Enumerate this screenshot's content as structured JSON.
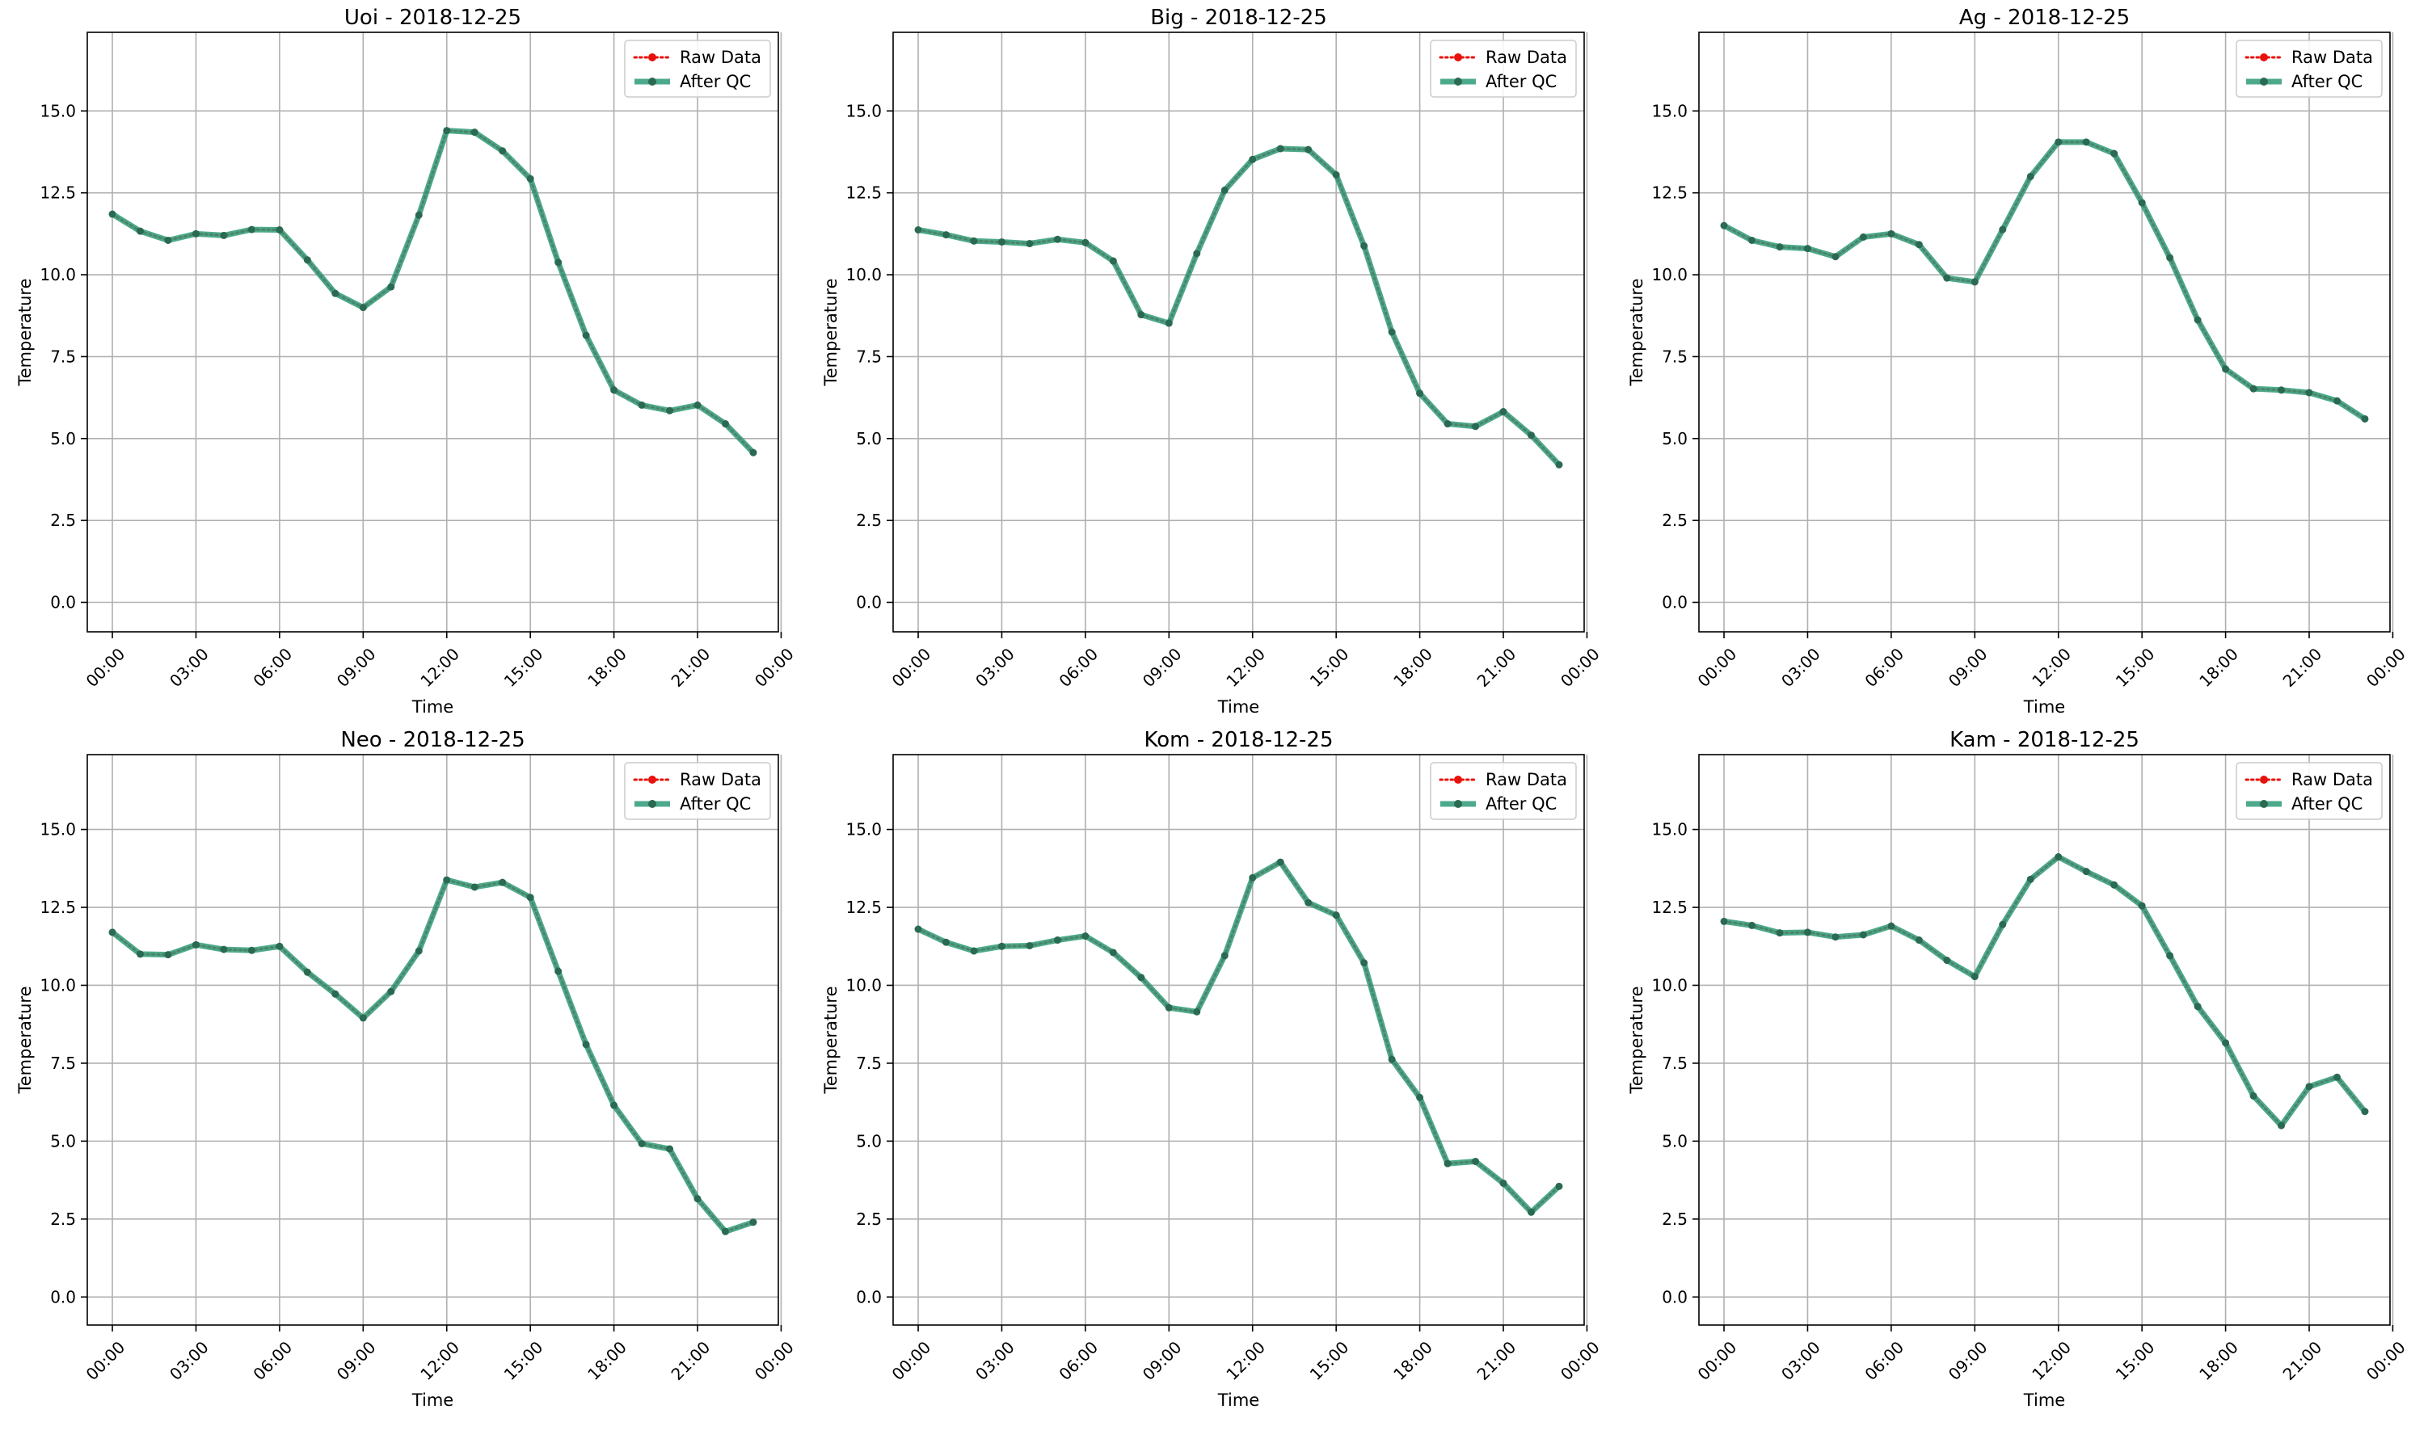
{
  "colors": {
    "raw": "#e8120c",
    "qc": "#2e9a78",
    "qc_marker": "#2b6a52"
  },
  "chart_data": [
    {
      "type": "line",
      "title": "Uoi - 2018-12-25",
      "xlabel": "Time",
      "ylabel": "Temperature",
      "xlim": [
        -0.9,
        23.9
      ],
      "ylim": [
        -0.9,
        17.4
      ],
      "x_ticks": [
        0,
        3,
        6,
        9,
        12,
        15,
        18,
        21,
        24
      ],
      "x_tick_labels": [
        "00:00",
        "03:00",
        "06:00",
        "09:00",
        "12:00",
        "15:00",
        "18:00",
        "21:00",
        "00:00"
      ],
      "y_ticks": [
        0.0,
        2.5,
        5.0,
        7.5,
        10.0,
        12.5,
        15.0
      ],
      "y_tick_labels": [
        "0.0",
        "2.5",
        "5.0",
        "7.5",
        "10.0",
        "12.5",
        "15.0"
      ],
      "grid": true,
      "legend": "upper-right",
      "x": [
        0,
        1,
        2,
        3,
        4,
        5,
        6,
        7,
        8,
        9,
        10,
        11,
        12,
        13,
        14,
        15,
        16,
        17,
        18,
        19,
        20,
        21,
        22,
        23
      ],
      "series": [
        {
          "name": "Raw Data",
          "style": "dotted",
          "values": [
            11.85,
            11.33,
            11.05,
            11.25,
            11.2,
            11.38,
            11.37,
            10.45,
            9.43,
            9.0,
            9.63,
            11.82,
            14.4,
            14.35,
            13.78,
            12.93,
            10.38,
            8.15,
            6.48,
            6.02,
            5.85,
            6.02,
            5.45,
            4.57
          ]
        },
        {
          "name": "After QC",
          "style": "solid",
          "values": [
            11.85,
            11.33,
            11.05,
            11.25,
            11.2,
            11.38,
            11.37,
            10.45,
            9.43,
            9.0,
            9.63,
            11.82,
            14.4,
            14.35,
            13.78,
            12.93,
            10.38,
            8.15,
            6.48,
            6.02,
            5.85,
            6.02,
            5.45,
            4.57
          ]
        }
      ]
    },
    {
      "type": "line",
      "title": "Big - 2018-12-25",
      "xlabel": "Time",
      "ylabel": "Temperature",
      "xlim": [
        -0.9,
        23.9
      ],
      "ylim": [
        -0.9,
        17.4
      ],
      "x_ticks": [
        0,
        3,
        6,
        9,
        12,
        15,
        18,
        21,
        24
      ],
      "x_tick_labels": [
        "00:00",
        "03:00",
        "06:00",
        "09:00",
        "12:00",
        "15:00",
        "18:00",
        "21:00",
        "00:00"
      ],
      "y_ticks": [
        0.0,
        2.5,
        5.0,
        7.5,
        10.0,
        12.5,
        15.0
      ],
      "y_tick_labels": [
        "0.0",
        "2.5",
        "5.0",
        "7.5",
        "10.0",
        "12.5",
        "15.0"
      ],
      "grid": true,
      "legend": "upper-right",
      "x": [
        0,
        1,
        2,
        3,
        4,
        5,
        6,
        7,
        8,
        9,
        10,
        11,
        12,
        13,
        14,
        15,
        16,
        17,
        18,
        19,
        20,
        21,
        22,
        23
      ],
      "series": [
        {
          "name": "Raw Data",
          "style": "dotted",
          "values": [
            11.37,
            11.22,
            11.03,
            11.0,
            10.95,
            11.08,
            10.98,
            10.42,
            8.78,
            8.52,
            10.65,
            12.58,
            13.52,
            13.85,
            13.82,
            13.05,
            10.88,
            8.25,
            6.38,
            5.45,
            5.37,
            5.82,
            5.1,
            4.2
          ]
        },
        {
          "name": "After QC",
          "style": "solid",
          "values": [
            11.37,
            11.22,
            11.03,
            11.0,
            10.95,
            11.08,
            10.98,
            10.42,
            8.78,
            8.52,
            10.65,
            12.58,
            13.52,
            13.85,
            13.82,
            13.05,
            10.88,
            8.25,
            6.38,
            5.45,
            5.37,
            5.82,
            5.1,
            4.2
          ]
        }
      ]
    },
    {
      "type": "line",
      "title": "Ag - 2018-12-25",
      "xlabel": "Time",
      "ylabel": "Temperature",
      "xlim": [
        -0.9,
        23.9
      ],
      "ylim": [
        -0.9,
        17.4
      ],
      "x_ticks": [
        0,
        3,
        6,
        9,
        12,
        15,
        18,
        21,
        24
      ],
      "x_tick_labels": [
        "00:00",
        "03:00",
        "06:00",
        "09:00",
        "12:00",
        "15:00",
        "18:00",
        "21:00",
        "00:00"
      ],
      "y_ticks": [
        0.0,
        2.5,
        5.0,
        7.5,
        10.0,
        12.5,
        15.0
      ],
      "y_tick_labels": [
        "0.0",
        "2.5",
        "5.0",
        "7.5",
        "10.0",
        "12.5",
        "15.0"
      ],
      "grid": true,
      "legend": "upper-right",
      "x": [
        0,
        1,
        2,
        3,
        4,
        5,
        6,
        7,
        8,
        9,
        10,
        11,
        12,
        13,
        14,
        15,
        16,
        17,
        18,
        19,
        20,
        21,
        22,
        23
      ],
      "series": [
        {
          "name": "Raw Data",
          "style": "dotted",
          "values": [
            11.5,
            11.05,
            10.85,
            10.8,
            10.55,
            11.15,
            11.25,
            10.92,
            9.9,
            9.78,
            11.38,
            13.0,
            14.05,
            14.05,
            13.7,
            12.2,
            10.52,
            8.62,
            7.12,
            6.52,
            6.48,
            6.4,
            6.15,
            5.6
          ]
        },
        {
          "name": "After QC",
          "style": "solid",
          "values": [
            11.5,
            11.05,
            10.85,
            10.8,
            10.55,
            11.15,
            11.25,
            10.92,
            9.9,
            9.78,
            11.38,
            13.0,
            14.05,
            14.05,
            13.7,
            12.2,
            10.52,
            8.62,
            7.12,
            6.52,
            6.48,
            6.4,
            6.15,
            5.6
          ]
        }
      ]
    },
    {
      "type": "line",
      "title": "Neo - 2018-12-25",
      "xlabel": "Time",
      "ylabel": "Temperature",
      "xlim": [
        -0.9,
        23.9
      ],
      "ylim": [
        -0.9,
        17.4
      ],
      "x_ticks": [
        0,
        3,
        6,
        9,
        12,
        15,
        18,
        21,
        24
      ],
      "x_tick_labels": [
        "00:00",
        "03:00",
        "06:00",
        "09:00",
        "12:00",
        "15:00",
        "18:00",
        "21:00",
        "00:00"
      ],
      "y_ticks": [
        0.0,
        2.5,
        5.0,
        7.5,
        10.0,
        12.5,
        15.0
      ],
      "y_tick_labels": [
        "0.0",
        "2.5",
        "5.0",
        "7.5",
        "10.0",
        "12.5",
        "15.0"
      ],
      "grid": true,
      "legend": "upper-right",
      "x": [
        0,
        1,
        2,
        3,
        4,
        5,
        6,
        7,
        8,
        9,
        10,
        11,
        12,
        13,
        14,
        15,
        16,
        17,
        18,
        19,
        20,
        21,
        22,
        23
      ],
      "series": [
        {
          "name": "Raw Data",
          "style": "dotted",
          "values": [
            11.7,
            11.0,
            10.98,
            11.3,
            11.15,
            11.12,
            11.25,
            10.42,
            9.72,
            8.95,
            9.8,
            11.1,
            13.38,
            13.15,
            13.3,
            12.82,
            10.45,
            8.1,
            6.15,
            4.92,
            4.75,
            3.15,
            2.1,
            2.4
          ]
        },
        {
          "name": "After QC",
          "style": "solid",
          "values": [
            11.7,
            11.0,
            10.98,
            11.3,
            11.15,
            11.12,
            11.25,
            10.42,
            9.72,
            8.95,
            9.8,
            11.1,
            13.38,
            13.15,
            13.3,
            12.82,
            10.45,
            8.1,
            6.15,
            4.92,
            4.75,
            3.15,
            2.1,
            2.4
          ]
        }
      ]
    },
    {
      "type": "line",
      "title": "Kom - 2018-12-25",
      "xlabel": "Time",
      "ylabel": "Temperature",
      "xlim": [
        -0.9,
        23.9
      ],
      "ylim": [
        -0.9,
        17.4
      ],
      "x_ticks": [
        0,
        3,
        6,
        9,
        12,
        15,
        18,
        21,
        24
      ],
      "x_tick_labels": [
        "00:00",
        "03:00",
        "06:00",
        "09:00",
        "12:00",
        "15:00",
        "18:00",
        "21:00",
        "00:00"
      ],
      "y_ticks": [
        0.0,
        2.5,
        5.0,
        7.5,
        10.0,
        12.5,
        15.0
      ],
      "y_tick_labels": [
        "0.0",
        "2.5",
        "5.0",
        "7.5",
        "10.0",
        "12.5",
        "15.0"
      ],
      "grid": true,
      "legend": "upper-right",
      "x": [
        0,
        1,
        2,
        3,
        4,
        5,
        6,
        7,
        8,
        9,
        10,
        11,
        12,
        13,
        14,
        15,
        16,
        17,
        18,
        19,
        20,
        21,
        22,
        23
      ],
      "series": [
        {
          "name": "Raw Data",
          "style": "dotted",
          "values": [
            11.8,
            11.38,
            11.1,
            11.25,
            11.27,
            11.45,
            11.58,
            11.05,
            10.25,
            9.28,
            9.15,
            10.95,
            13.45,
            13.95,
            12.65,
            12.25,
            10.72,
            7.62,
            6.4,
            4.28,
            4.35,
            3.65,
            2.72,
            3.55
          ]
        },
        {
          "name": "After QC",
          "style": "solid",
          "values": [
            11.8,
            11.38,
            11.1,
            11.25,
            11.27,
            11.45,
            11.58,
            11.05,
            10.25,
            9.28,
            9.15,
            10.95,
            13.45,
            13.95,
            12.65,
            12.25,
            10.72,
            7.62,
            6.4,
            4.28,
            4.35,
            3.65,
            2.72,
            3.55
          ]
        }
      ]
    },
    {
      "type": "line",
      "title": "Kam - 2018-12-25",
      "xlabel": "Time",
      "ylabel": "Temperature",
      "xlim": [
        -0.9,
        23.9
      ],
      "ylim": [
        -0.9,
        17.4
      ],
      "x_ticks": [
        0,
        3,
        6,
        9,
        12,
        15,
        18,
        21,
        24
      ],
      "x_tick_labels": [
        "00:00",
        "03:00",
        "06:00",
        "09:00",
        "12:00",
        "15:00",
        "18:00",
        "21:00",
        "00:00"
      ],
      "y_ticks": [
        0.0,
        2.5,
        5.0,
        7.5,
        10.0,
        12.5,
        15.0
      ],
      "y_tick_labels": [
        "0.0",
        "2.5",
        "5.0",
        "7.5",
        "10.0",
        "12.5",
        "15.0"
      ],
      "grid": true,
      "legend": "upper-right",
      "x": [
        0,
        1,
        2,
        3,
        4,
        5,
        6,
        7,
        8,
        9,
        10,
        11,
        12,
        13,
        14,
        15,
        16,
        17,
        18,
        19,
        20,
        21,
        22,
        23
      ],
      "series": [
        {
          "name": "Raw Data",
          "style": "dotted",
          "values": [
            12.05,
            11.92,
            11.68,
            11.7,
            11.55,
            11.62,
            11.9,
            11.45,
            10.8,
            10.28,
            11.95,
            13.4,
            14.12,
            13.65,
            13.22,
            12.55,
            10.95,
            9.32,
            8.15,
            6.45,
            5.5,
            6.75,
            7.05,
            5.95
          ]
        },
        {
          "name": "After QC",
          "style": "solid",
          "values": [
            12.05,
            11.92,
            11.68,
            11.7,
            11.55,
            11.62,
            11.9,
            11.45,
            10.8,
            10.28,
            11.95,
            13.4,
            14.12,
            13.65,
            13.22,
            12.55,
            10.95,
            9.32,
            8.15,
            6.45,
            5.5,
            6.75,
            7.05,
            5.95
          ]
        }
      ]
    }
  ]
}
